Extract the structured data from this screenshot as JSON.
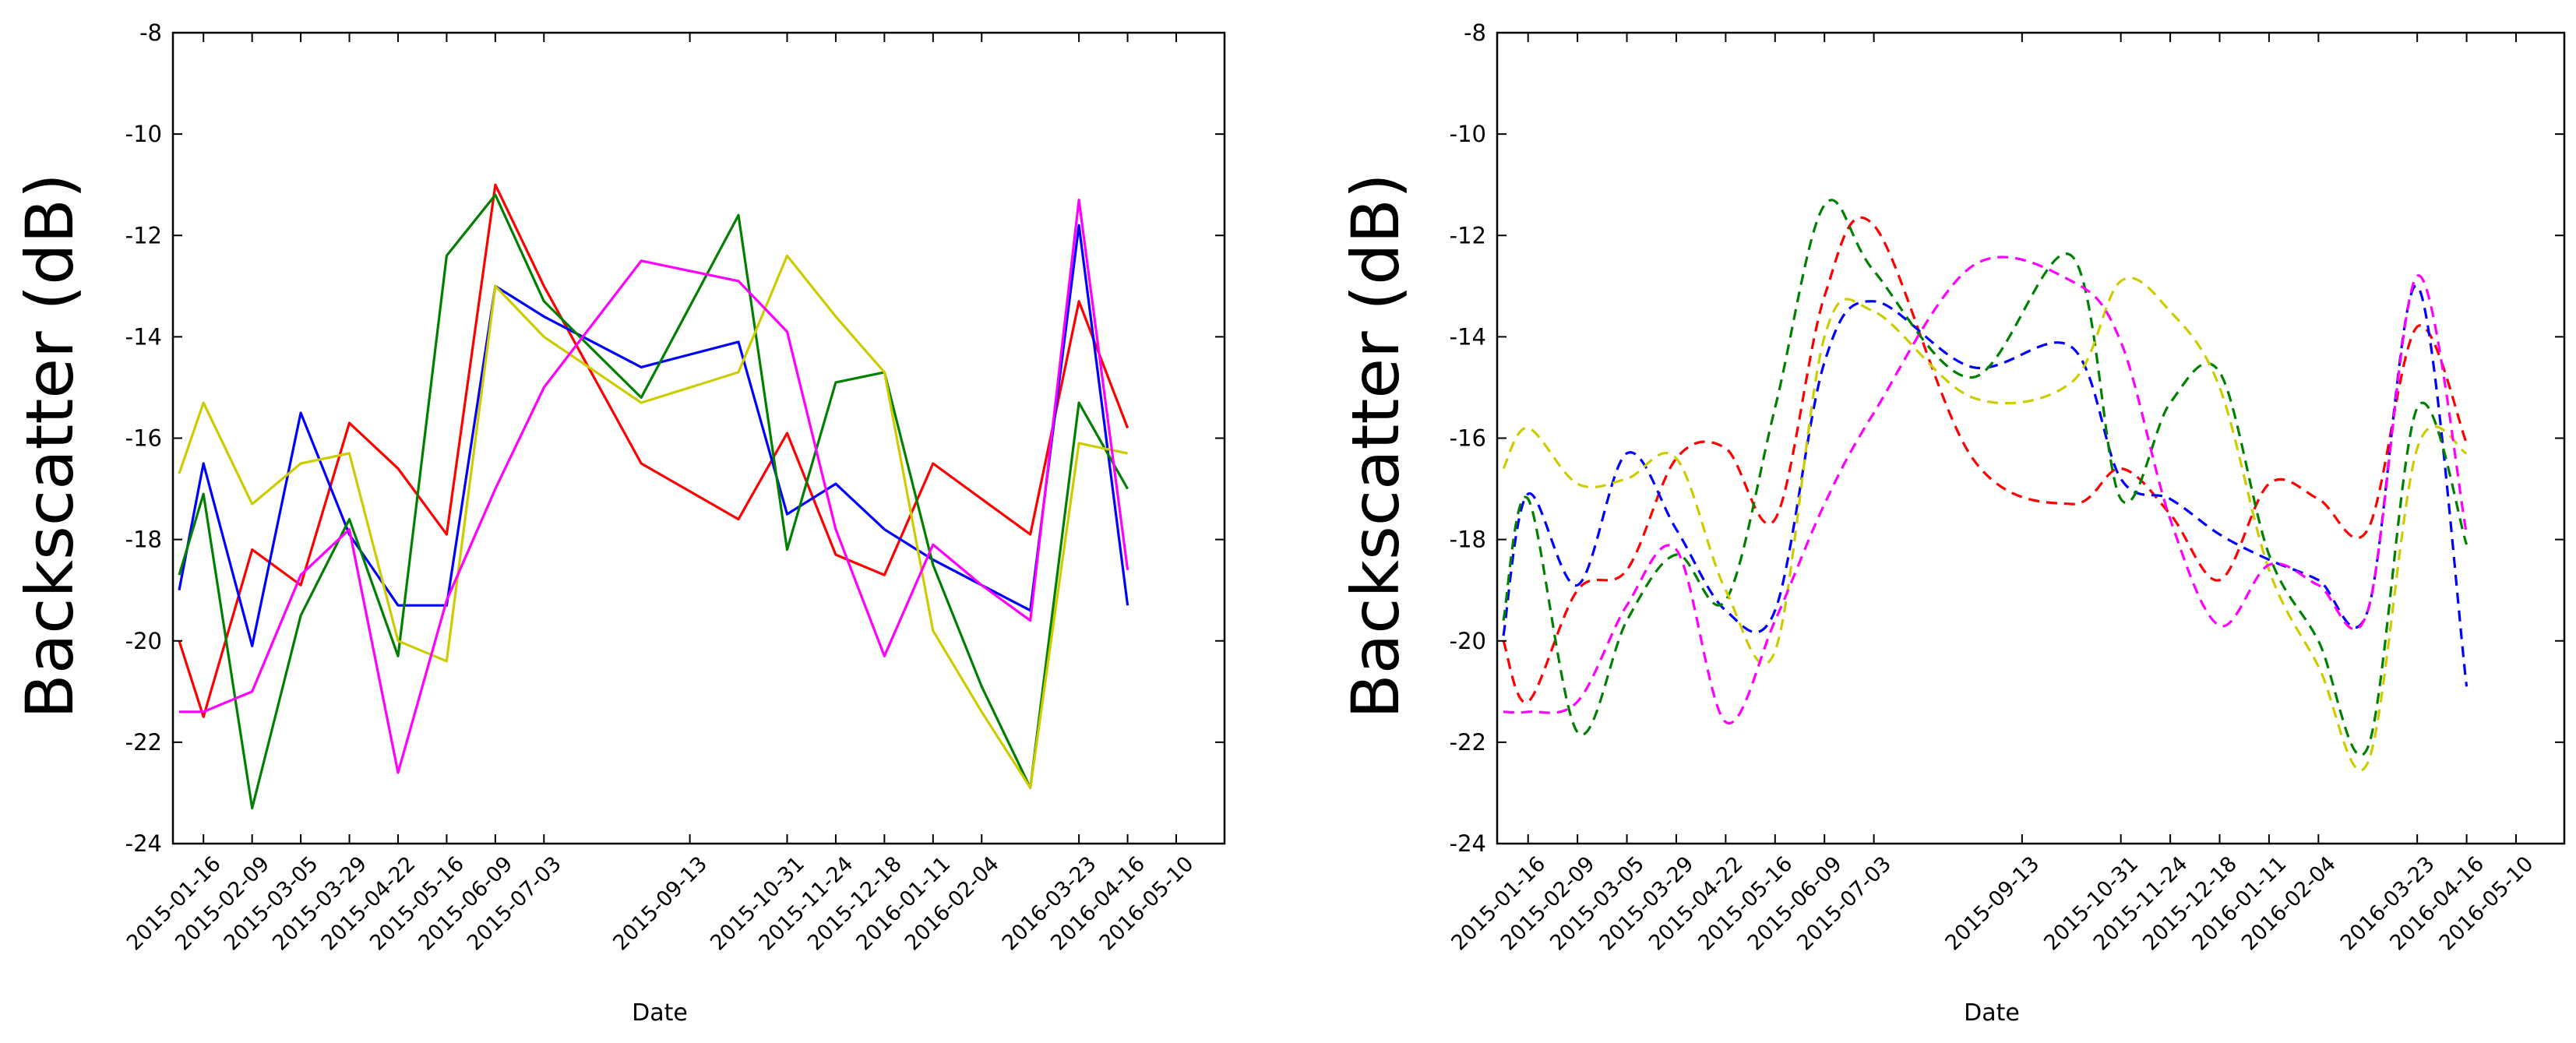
{
  "chart_data": [
    {
      "type": "line",
      "line_style": "solid",
      "xlabel": "Date",
      "ylabel": "Backscatter (dB)",
      "ylim": [
        -24,
        -8
      ],
      "yticks": [
        -24,
        -22,
        -20,
        -18,
        -16,
        -14,
        -12,
        -10,
        -8
      ],
      "xticks": [
        "2015-01-16",
        "2015-02-09",
        "2015-03-05",
        "2015-03-29",
        "2015-04-22",
        "2015-05-16",
        "2015-06-09",
        "2015-07-03",
        "2015-09-13",
        "2015-10-31",
        "2015-11-24",
        "2015-12-18",
        "2016-01-11",
        "2016-02-04",
        "2016-03-23",
        "2016-04-16",
        "2016-05-10"
      ],
      "grid": false,
      "legend": "none",
      "series": [
        {
          "color": "#ff0000",
          "points": [
            [
              "2015-01-04",
              -20.0
            ],
            [
              "2015-01-16",
              -21.5
            ],
            [
              "2015-02-09",
              -18.2
            ],
            [
              "2015-03-05",
              -18.9
            ],
            [
              "2015-03-29",
              -15.7
            ],
            [
              "2015-04-22",
              -16.6
            ],
            [
              "2015-05-16",
              -17.9
            ],
            [
              "2015-06-09",
              -11.0
            ],
            [
              "2015-07-03",
              -13.0
            ],
            [
              "2015-08-20",
              -16.5
            ],
            [
              "2015-10-07",
              -17.6
            ],
            [
              "2015-10-31",
              -15.9
            ],
            [
              "2015-11-24",
              -18.3
            ],
            [
              "2015-12-18",
              -18.7
            ],
            [
              "2016-01-11",
              -16.5
            ],
            [
              "2016-02-04",
              -17.2
            ],
            [
              "2016-02-28",
              -17.9
            ],
            [
              "2016-03-23",
              -13.3
            ],
            [
              "2016-04-16",
              -15.8
            ]
          ]
        },
        {
          "color": "#0000ff",
          "points": [
            [
              "2015-01-04",
              -19.0
            ],
            [
              "2015-01-16",
              -16.5
            ],
            [
              "2015-02-09",
              -20.1
            ],
            [
              "2015-03-05",
              -15.5
            ],
            [
              "2015-03-29",
              -17.9
            ],
            [
              "2015-04-22",
              -19.3
            ],
            [
              "2015-05-16",
              -19.3
            ],
            [
              "2015-06-09",
              -13.0
            ],
            [
              "2015-07-03",
              -13.6
            ],
            [
              "2015-08-20",
              -14.6
            ],
            [
              "2015-10-07",
              -14.1
            ],
            [
              "2015-10-31",
              -17.5
            ],
            [
              "2015-11-24",
              -16.9
            ],
            [
              "2015-12-18",
              -17.8
            ],
            [
              "2016-01-11",
              -18.4
            ],
            [
              "2016-02-04",
              -18.9
            ],
            [
              "2016-02-28",
              -19.4
            ],
            [
              "2016-03-23",
              -11.8
            ],
            [
              "2016-04-16",
              -19.3
            ]
          ]
        },
        {
          "color": "#008000",
          "points": [
            [
              "2015-01-04",
              -18.7
            ],
            [
              "2015-01-16",
              -17.1
            ],
            [
              "2015-02-09",
              -23.3
            ],
            [
              "2015-03-05",
              -19.5
            ],
            [
              "2015-03-29",
              -17.6
            ],
            [
              "2015-04-22",
              -20.3
            ],
            [
              "2015-05-16",
              -12.4
            ],
            [
              "2015-06-09",
              -11.2
            ],
            [
              "2015-07-03",
              -13.3
            ],
            [
              "2015-08-20",
              -15.2
            ],
            [
              "2015-10-07",
              -11.6
            ],
            [
              "2015-10-31",
              -18.2
            ],
            [
              "2015-11-24",
              -14.9
            ],
            [
              "2015-12-18",
              -14.7
            ],
            [
              "2016-01-11",
              -18.5
            ],
            [
              "2016-02-04",
              -20.9
            ],
            [
              "2016-02-28",
              -22.9
            ],
            [
              "2016-03-23",
              -15.3
            ],
            [
              "2016-04-16",
              -17.0
            ]
          ]
        },
        {
          "color": "#cccc00",
          "points": [
            [
              "2015-01-04",
              -16.7
            ],
            [
              "2015-01-16",
              -15.3
            ],
            [
              "2015-02-09",
              -17.3
            ],
            [
              "2015-03-05",
              -16.5
            ],
            [
              "2015-03-29",
              -16.3
            ],
            [
              "2015-04-22",
              -20.0
            ],
            [
              "2015-05-16",
              -20.4
            ],
            [
              "2015-06-09",
              -13.0
            ],
            [
              "2015-07-03",
              -14.0
            ],
            [
              "2015-08-20",
              -15.3
            ],
            [
              "2015-10-07",
              -14.7
            ],
            [
              "2015-10-31",
              -12.4
            ],
            [
              "2015-11-24",
              -13.6
            ],
            [
              "2015-12-18",
              -14.7
            ],
            [
              "2016-01-11",
              -19.8
            ],
            [
              "2016-02-04",
              -21.4
            ],
            [
              "2016-02-28",
              -22.9
            ],
            [
              "2016-03-23",
              -16.1
            ],
            [
              "2016-04-16",
              -16.3
            ]
          ]
        },
        {
          "color": "#ff00ff",
          "points": [
            [
              "2015-01-04",
              -21.4
            ],
            [
              "2015-01-16",
              -21.4
            ],
            [
              "2015-02-09",
              -21.0
            ],
            [
              "2015-03-05",
              -18.7
            ],
            [
              "2015-03-29",
              -17.8
            ],
            [
              "2015-04-22",
              -22.6
            ],
            [
              "2015-05-16",
              -19.2
            ],
            [
              "2015-06-09",
              -17.0
            ],
            [
              "2015-07-03",
              -15.0
            ],
            [
              "2015-08-20",
              -12.5
            ],
            [
              "2015-10-07",
              -12.9
            ],
            [
              "2015-10-31",
              -13.9
            ],
            [
              "2015-11-24",
              -17.8
            ],
            [
              "2015-12-18",
              -20.3
            ],
            [
              "2016-01-11",
              -18.1
            ],
            [
              "2016-02-04",
              -18.9
            ],
            [
              "2016-02-28",
              -19.6
            ],
            [
              "2016-03-23",
              -11.3
            ],
            [
              "2016-04-16",
              -18.6
            ]
          ]
        }
      ]
    },
    {
      "type": "line",
      "line_style": "dashed",
      "xlabel": "Date",
      "ylabel": "Backscatter (dB)",
      "ylim": [
        -24,
        -8
      ],
      "yticks": [
        -24,
        -22,
        -20,
        -18,
        -16,
        -14,
        -12,
        -10,
        -8
      ],
      "xticks": [
        "2015-01-16",
        "2015-02-09",
        "2015-03-05",
        "2015-03-29",
        "2015-04-22",
        "2015-05-16",
        "2015-06-09",
        "2015-07-03",
        "2015-09-13",
        "2015-10-31",
        "2015-11-24",
        "2015-12-18",
        "2016-01-11",
        "2016-02-04",
        "2016-03-23",
        "2016-04-16",
        "2016-05-10"
      ],
      "grid": false,
      "legend": "none",
      "series": [
        {
          "color": "#ff0000",
          "points": [
            [
              "2015-01-04",
              -20.0
            ],
            [
              "2015-01-16",
              -21.2
            ],
            [
              "2015-02-09",
              -19.0
            ],
            [
              "2015-03-05",
              -18.6
            ],
            [
              "2015-03-29",
              -16.4
            ],
            [
              "2015-04-22",
              -16.2
            ],
            [
              "2015-05-16",
              -17.6
            ],
            [
              "2015-06-09",
              -13.2
            ],
            [
              "2015-07-03",
              -11.8
            ],
            [
              "2015-08-20",
              -16.4
            ],
            [
              "2015-10-07",
              -17.3
            ],
            [
              "2015-10-31",
              -16.6
            ],
            [
              "2015-11-24",
              -17.5
            ],
            [
              "2015-12-18",
              -18.8
            ],
            [
              "2016-01-11",
              -16.9
            ],
            [
              "2016-02-04",
              -17.2
            ],
            [
              "2016-02-28",
              -17.8
            ],
            [
              "2016-03-23",
              -13.8
            ],
            [
              "2016-04-16",
              -16.1
            ]
          ]
        },
        {
          "color": "#0000ff",
          "points": [
            [
              "2015-01-04",
              -19.9
            ],
            [
              "2015-01-16",
              -17.1
            ],
            [
              "2015-02-09",
              -18.9
            ],
            [
              "2015-03-05",
              -16.3
            ],
            [
              "2015-03-29",
              -17.8
            ],
            [
              "2015-04-22",
              -19.4
            ],
            [
              "2015-05-16",
              -19.4
            ],
            [
              "2015-06-09",
              -14.5
            ],
            [
              "2015-07-03",
              -13.3
            ],
            [
              "2015-08-20",
              -14.6
            ],
            [
              "2015-10-07",
              -14.2
            ],
            [
              "2015-10-31",
              -16.8
            ],
            [
              "2015-11-24",
              -17.2
            ],
            [
              "2015-12-18",
              -17.9
            ],
            [
              "2016-01-11",
              -18.4
            ],
            [
              "2016-02-04",
              -18.8
            ],
            [
              "2016-02-28",
              -19.4
            ],
            [
              "2016-03-23",
              -13.0
            ],
            [
              "2016-04-16",
              -20.9
            ]
          ]
        },
        {
          "color": "#008000",
          "points": [
            [
              "2015-01-04",
              -19.6
            ],
            [
              "2015-01-16",
              -17.2
            ],
            [
              "2015-02-09",
              -21.8
            ],
            [
              "2015-03-05",
              -19.6
            ],
            [
              "2015-03-29",
              -18.3
            ],
            [
              "2015-04-22",
              -19.2
            ],
            [
              "2015-05-16",
              -15.4
            ],
            [
              "2015-06-09",
              -11.4
            ],
            [
              "2015-07-03",
              -12.7
            ],
            [
              "2015-08-20",
              -14.8
            ],
            [
              "2015-10-07",
              -12.4
            ],
            [
              "2015-10-31",
              -17.2
            ],
            [
              "2015-11-24",
              -15.3
            ],
            [
              "2015-12-18",
              -14.7
            ],
            [
              "2016-01-11",
              -18.3
            ],
            [
              "2016-02-04",
              -20.0
            ],
            [
              "2016-02-28",
              -22.1
            ],
            [
              "2016-03-23",
              -15.4
            ],
            [
              "2016-04-16",
              -18.1
            ]
          ]
        },
        {
          "color": "#cccc00",
          "points": [
            [
              "2015-01-04",
              -16.6
            ],
            [
              "2015-01-16",
              -15.8
            ],
            [
              "2015-02-09",
              -16.9
            ],
            [
              "2015-03-05",
              -16.8
            ],
            [
              "2015-03-29",
              -16.4
            ],
            [
              "2015-04-22",
              -19.0
            ],
            [
              "2015-05-16",
              -20.2
            ],
            [
              "2015-06-09",
              -14.0
            ],
            [
              "2015-07-03",
              -13.5
            ],
            [
              "2015-08-20",
              -15.2
            ],
            [
              "2015-10-07",
              -14.9
            ],
            [
              "2015-10-31",
              -12.9
            ],
            [
              "2015-11-24",
              -13.5
            ],
            [
              "2015-12-18",
              -15.0
            ],
            [
              "2016-01-11",
              -18.6
            ],
            [
              "2016-02-04",
              -20.5
            ],
            [
              "2016-02-28",
              -22.4
            ],
            [
              "2016-03-23",
              -16.2
            ],
            [
              "2016-04-16",
              -16.3
            ]
          ]
        },
        {
          "color": "#ff00ff",
          "points": [
            [
              "2015-01-04",
              -21.4
            ],
            [
              "2015-01-16",
              -21.4
            ],
            [
              "2015-02-09",
              -21.2
            ],
            [
              "2015-03-05",
              -19.3
            ],
            [
              "2015-03-29",
              -18.2
            ],
            [
              "2015-04-22",
              -21.6
            ],
            [
              "2015-05-16",
              -19.6
            ],
            [
              "2015-06-09",
              -17.3
            ],
            [
              "2015-07-03",
              -15.5
            ],
            [
              "2015-08-20",
              -12.6
            ],
            [
              "2015-10-07",
              -12.9
            ],
            [
              "2015-10-31",
              -14.1
            ],
            [
              "2015-11-24",
              -17.6
            ],
            [
              "2015-12-18",
              -19.7
            ],
            [
              "2016-01-11",
              -18.5
            ],
            [
              "2016-02-04",
              -18.9
            ],
            [
              "2016-02-28",
              -19.4
            ],
            [
              "2016-03-23",
              -12.8
            ],
            [
              "2016-04-16",
              -17.9
            ]
          ]
        }
      ]
    }
  ]
}
